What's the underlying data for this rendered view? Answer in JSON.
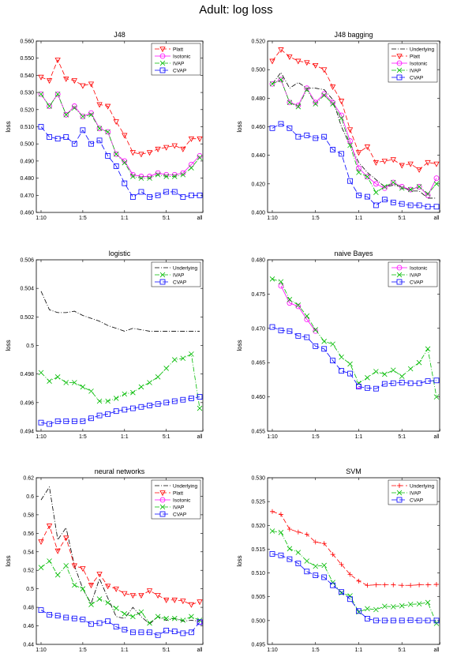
{
  "figure_title": "Adult: log loss",
  "chart_data": [
    {
      "type": "line",
      "title": "J48",
      "ylabel": "loss",
      "ylim": [
        0.46,
        0.56
      ],
      "yticks": [
        "0.460",
        "0.470",
        "0.480",
        "0.490",
        "0.500",
        "0.510",
        "0.520",
        "0.530",
        "0.540",
        "0.550",
        "0.560"
      ],
      "xticks": [
        "1:10",
        "1:5",
        "1:1",
        "5:1",
        "all"
      ],
      "legend": "top-right",
      "series": [
        {
          "name": "Platt",
          "color": "#ff0000",
          "dash": "6,3",
          "marker": "tri",
          "values": [
            0.539,
            0.537,
            0.549,
            0.538,
            0.537,
            0.534,
            0.535,
            0.523,
            0.522,
            0.513,
            0.505,
            0.495,
            0.494,
            0.495,
            0.497,
            0.498,
            0.499,
            0.497,
            0.503,
            0.503
          ]
        },
        {
          "name": "Isotonic",
          "color": "#ff00ff",
          "dash": "",
          "marker": "circle",
          "values": [
            0.529,
            0.522,
            0.529,
            0.517,
            0.522,
            0.516,
            0.518,
            0.509,
            0.507,
            0.494,
            0.49,
            0.482,
            0.481,
            0.481,
            0.483,
            0.482,
            0.482,
            0.483,
            0.488,
            0.493
          ]
        },
        {
          "name": "IVAP",
          "color": "#00bb00",
          "dash": "6,2,1,2",
          "marker": "x",
          "values": [
            0.529,
            0.522,
            0.529,
            0.517,
            0.521,
            0.516,
            0.517,
            0.509,
            0.507,
            0.494,
            0.489,
            0.481,
            0.48,
            0.48,
            0.482,
            0.481,
            0.481,
            0.482,
            0.486,
            0.492
          ]
        },
        {
          "name": "CVAP",
          "color": "#0000ff",
          "dash": "7,3",
          "marker": "square",
          "values": [
            0.51,
            0.504,
            0.503,
            0.504,
            0.5,
            0.508,
            0.5,
            0.502,
            0.493,
            0.487,
            0.477,
            0.469,
            0.472,
            0.469,
            0.47,
            0.472,
            0.472,
            0.469,
            0.47,
            0.47
          ]
        }
      ]
    },
    {
      "type": "line",
      "title": "J48 bagging",
      "ylabel": "loss",
      "ylim": [
        0.4,
        0.52
      ],
      "yticks": [
        "0.400",
        "0.420",
        "0.440",
        "0.460",
        "0.480",
        "0.500",
        "0.520"
      ],
      "xticks": [
        "1:10",
        "1:5",
        "1:1",
        "5:1",
        "all"
      ],
      "legend": "top-right",
      "series": [
        {
          "name": "Underlying",
          "color": "#000000",
          "dash": "6,2,1,2",
          "marker": "none",
          "values": [
            0.49,
            0.498,
            0.487,
            0.491,
            0.487,
            0.487,
            0.486,
            0.479,
            0.46,
            0.447,
            0.435,
            0.428,
            0.423,
            0.418,
            0.419,
            0.418,
            0.415,
            0.415,
            0.41,
            0.41
          ]
        },
        {
          "name": "Platt",
          "color": "#ff0000",
          "dash": "6,3",
          "marker": "tri",
          "values": [
            0.506,
            0.514,
            0.509,
            0.506,
            0.505,
            0.503,
            0.5,
            0.488,
            0.478,
            0.458,
            0.442,
            0.446,
            0.435,
            0.436,
            0.437,
            0.433,
            0.434,
            0.43,
            0.435,
            0.434
          ]
        },
        {
          "name": "Isotonic",
          "color": "#ff00ff",
          "dash": "",
          "marker": "circle",
          "values": [
            0.49,
            0.493,
            0.477,
            0.475,
            0.487,
            0.477,
            0.483,
            0.477,
            0.468,
            0.45,
            0.431,
            0.425,
            0.42,
            0.417,
            0.421,
            0.418,
            0.416,
            0.418,
            0.412,
            0.424
          ]
        },
        {
          "name": "IVAP",
          "color": "#00bb00",
          "dash": "6,2,1,2",
          "marker": "x",
          "values": [
            0.49,
            0.493,
            0.477,
            0.474,
            0.486,
            0.476,
            0.482,
            0.476,
            0.466,
            0.447,
            0.428,
            0.425,
            0.414,
            0.418,
            0.421,
            0.417,
            0.416,
            0.418,
            0.413,
            0.42
          ]
        },
        {
          "name": "CVAP",
          "color": "#0000ff",
          "dash": "7,3",
          "marker": "square",
          "values": [
            0.459,
            0.462,
            0.459,
            0.453,
            0.454,
            0.452,
            0.453,
            0.444,
            0.441,
            0.422,
            0.412,
            0.411,
            0.405,
            0.409,
            0.407,
            0.406,
            0.405,
            0.405,
            0.404,
            0.404
          ]
        }
      ]
    },
    {
      "type": "line",
      "title": "logistic",
      "ylabel": "loss",
      "ylim": [
        0.494,
        0.506
      ],
      "yticks": [
        "0.494",
        "0.496",
        "0.498",
        "0.5",
        "0.502",
        "0.504",
        "0.506"
      ],
      "xticks": [
        "1:10",
        "1:5",
        "1:1",
        "5:1",
        "all"
      ],
      "legend": "top-right",
      "series": [
        {
          "name": "Underlying",
          "color": "#000000",
          "dash": "6,2,1,2",
          "marker": "none",
          "values": [
            0.5038,
            0.5025,
            0.5023,
            0.5023,
            0.5024,
            0.5021,
            0.5019,
            0.5017,
            0.5014,
            0.5012,
            0.501,
            0.5012,
            0.5011,
            0.501,
            0.501,
            0.501,
            0.501,
            0.501,
            0.501,
            0.501
          ]
        },
        {
          "name": "IVAP",
          "color": "#00bb00",
          "dash": "6,2,1,2",
          "marker": "x",
          "values": [
            0.4981,
            0.4975,
            0.4978,
            0.4974,
            0.4974,
            0.4971,
            0.4968,
            0.4961,
            0.4961,
            0.4963,
            0.4966,
            0.4967,
            0.4971,
            0.4974,
            0.4978,
            0.4984,
            0.499,
            0.4991,
            0.4994,
            0.4956
          ]
        },
        {
          "name": "CVAP",
          "color": "#0000ff",
          "dash": "7,3",
          "marker": "square",
          "values": [
            0.4946,
            0.4945,
            0.4947,
            0.4947,
            0.4947,
            0.4947,
            0.4949,
            0.4951,
            0.4952,
            0.4954,
            0.4955,
            0.4956,
            0.4957,
            0.4958,
            0.4959,
            0.496,
            0.4961,
            0.4962,
            0.4963,
            0.4964
          ]
        }
      ]
    },
    {
      "type": "line",
      "title": "naive Bayes",
      "ylabel": "loss",
      "ylim": [
        0.455,
        0.48
      ],
      "yticks": [
        "0.455",
        "0.460",
        "0.465",
        "0.470",
        "0.475",
        "0.480"
      ],
      "xticks": [
        "1:10",
        "1:5",
        "1:1",
        "5:1",
        "all"
      ],
      "legend": "top-right",
      "series": [
        {
          "name": "Isotonic",
          "color": "#ff00ff",
          "dash": "",
          "marker": "circle",
          "values": [
            null,
            0.4762,
            0.4737,
            0.4732,
            0.4713,
            0.4696,
            null,
            null,
            null,
            null,
            0.4616,
            null,
            null,
            null,
            null,
            null,
            null,
            null,
            null,
            null
          ]
        },
        {
          "name": "IVAP",
          "color": "#00bb00",
          "dash": "6,2,1,2",
          "marker": "x",
          "values": [
            0.4772,
            0.4768,
            0.4742,
            0.4734,
            0.4718,
            0.4698,
            0.4681,
            0.4677,
            0.4658,
            0.4648,
            0.462,
            0.4628,
            0.4637,
            0.4633,
            0.4639,
            0.463,
            0.4641,
            0.465,
            0.467,
            0.46
          ]
        },
        {
          "name": "CVAP",
          "color": "#0000ff",
          "dash": "7,3",
          "marker": "square",
          "values": [
            0.4702,
            0.4697,
            0.4696,
            0.4689,
            0.4687,
            0.4674,
            0.467,
            0.4653,
            0.4638,
            0.4634,
            0.4615,
            0.4613,
            0.4612,
            0.4619,
            0.462,
            0.4621,
            0.462,
            0.462,
            0.4623,
            0.4624
          ]
        }
      ]
    },
    {
      "type": "line",
      "title": "neural networks",
      "ylabel": "loss",
      "ylim": [
        0.44,
        0.62
      ],
      "yticks": [
        "0.44",
        "0.46",
        "0.48",
        "0.5",
        "0.52",
        "0.54",
        "0.56",
        "0.58",
        "0.6",
        "0.62"
      ],
      "xticks": [
        "1:10",
        "1:5",
        "1:1",
        "5:1",
        "all"
      ],
      "legend": "top-right",
      "series": [
        {
          "name": "Underlying",
          "color": "#000000",
          "dash": "6,2,1,2",
          "marker": "none",
          "values": [
            0.596,
            0.61,
            0.553,
            0.566,
            0.525,
            0.5,
            0.484,
            0.511,
            0.49,
            0.47,
            0.468,
            0.48,
            0.47,
            0.462,
            0.47,
            0.466,
            0.468,
            0.465,
            0.466,
            0.465
          ]
        },
        {
          "name": "Platt",
          "color": "#ff0000",
          "dash": "6,3",
          "marker": "tri",
          "values": [
            0.551,
            0.568,
            0.541,
            0.555,
            0.525,
            0.522,
            0.504,
            0.516,
            0.503,
            0.5,
            0.495,
            0.493,
            0.493,
            0.498,
            0.493,
            0.488,
            0.488,
            0.487,
            0.483,
            0.486
          ]
        },
        {
          "name": "Isotonic",
          "color": "#ff00ff",
          "dash": "",
          "marker": "circle",
          "values": [
            null,
            null,
            null,
            null,
            null,
            null,
            null,
            null,
            null,
            null,
            null,
            null,
            null,
            null,
            null,
            null,
            null,
            null,
            null,
            0.464
          ]
        },
        {
          "name": "IVAP",
          "color": "#00bb00",
          "dash": "6,2,1,2",
          "marker": "x",
          "values": [
            0.523,
            0.53,
            0.515,
            0.525,
            0.504,
            0.5,
            0.483,
            0.489,
            0.485,
            0.479,
            0.473,
            0.47,
            0.475,
            0.463,
            0.47,
            0.468,
            0.468,
            0.466,
            0.47,
            0.466
          ]
        },
        {
          "name": "CVAP",
          "color": "#0000ff",
          "dash": "7,3",
          "marker": "square",
          "values": [
            0.477,
            0.472,
            0.471,
            0.469,
            0.468,
            0.467,
            0.462,
            0.463,
            0.465,
            0.459,
            0.456,
            0.453,
            0.453,
            0.453,
            0.45,
            0.455,
            0.454,
            0.452,
            0.453,
            0.464
          ]
        }
      ]
    },
    {
      "type": "line",
      "title": "SVM",
      "ylabel": "loss",
      "ylim": [
        0.495,
        0.53
      ],
      "yticks": [
        "0.495",
        "0.500",
        "0.505",
        "0.510",
        "0.515",
        "0.520",
        "0.525",
        "0.530"
      ],
      "xticks": [
        "1:10",
        "1:5",
        "1:1",
        "5:1",
        "all"
      ],
      "legend": "top-right",
      "series": [
        {
          "name": "Underlying",
          "color": "#ff0000",
          "dash": "6,3",
          "marker": "plus",
          "values": [
            0.5229,
            0.5223,
            0.5192,
            0.5186,
            0.5181,
            0.5165,
            0.5162,
            0.5139,
            0.5118,
            0.5097,
            0.5083,
            0.5074,
            0.5075,
            0.5075,
            0.5075,
            0.5074,
            0.5074,
            0.5075,
            0.5075,
            0.5076
          ]
        },
        {
          "name": "IVAP",
          "color": "#00bb00",
          "dash": "6,2,1,2",
          "marker": "x",
          "values": [
            0.5188,
            0.5185,
            0.5151,
            0.5143,
            0.5125,
            0.5114,
            0.5116,
            0.508,
            0.5058,
            0.5052,
            0.5018,
            0.5025,
            0.5023,
            0.503,
            0.5029,
            0.5031,
            0.5034,
            0.5035,
            0.5038,
            0.4994
          ]
        },
        {
          "name": "CVAP",
          "color": "#0000ff",
          "dash": "7,3",
          "marker": "square",
          "values": [
            0.514,
            0.5137,
            0.5129,
            0.512,
            0.5103,
            0.5095,
            0.5091,
            0.5074,
            0.506,
            0.5045,
            0.502,
            0.5004,
            0.5,
            0.5,
            0.5,
            0.5,
            0.5001,
            0.5,
            0.5,
            0.5
          ]
        }
      ]
    }
  ]
}
